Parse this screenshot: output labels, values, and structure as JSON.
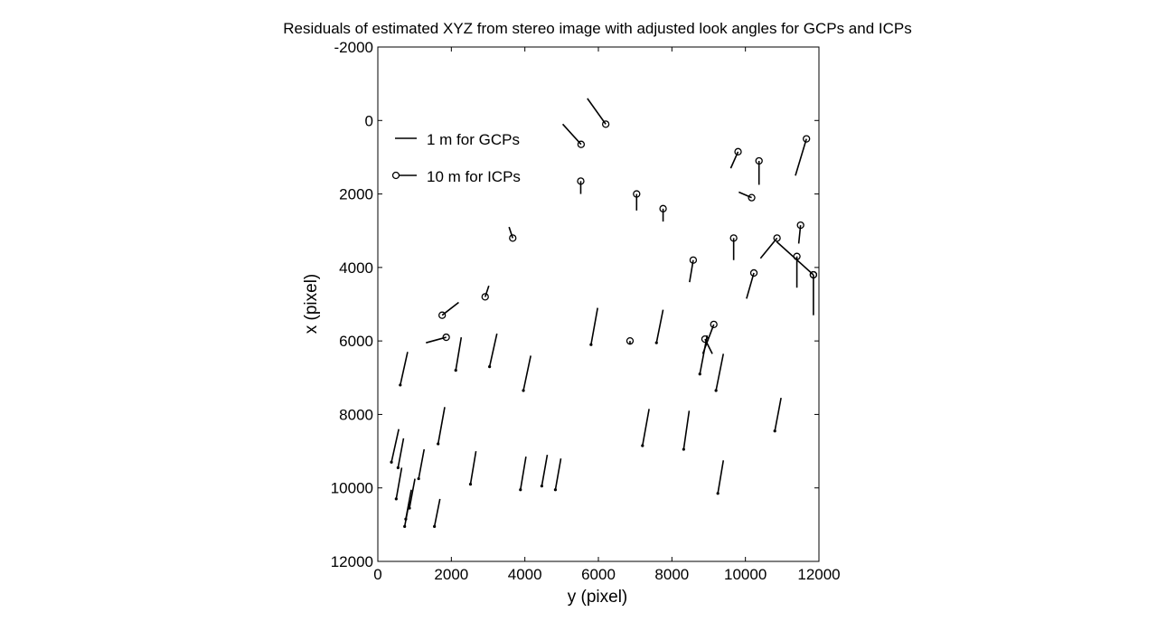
{
  "chart_data": {
    "type": "scatter",
    "title": "Residuals of estimated XYZ from stereo image with adjusted look angles for GCPs and ICPs",
    "xlabel": "y (pixel)",
    "ylabel": "x (pixel)",
    "xlim": [
      0,
      12000
    ],
    "ylim": [
      -2000,
      12000
    ],
    "y_reversed": true,
    "grid": false,
    "x_ticks": [
      "0",
      "2000",
      "4000",
      "6000",
      "8000",
      "10000",
      "12000"
    ],
    "y_ticks": [
      "-2000",
      "0",
      "2000",
      "4000",
      "6000",
      "8000",
      "10000",
      "12000"
    ],
    "x_tick_values": [
      0,
      2000,
      4000,
      6000,
      8000,
      10000,
      12000
    ],
    "y_tick_values": [
      -2000,
      0,
      2000,
      4000,
      6000,
      8000,
      10000,
      12000
    ],
    "legend": {
      "placement": "top-left",
      "entries": [
        {
          "label": "1 m for GCPs",
          "marker": "none"
        },
        {
          "label": "10 m for ICPs",
          "marker": "circle"
        }
      ]
    },
    "series": [
      {
        "name": "1 m for GCPs",
        "marker": "dot",
        "points": [
          {
            "y": 610,
            "x": 7200,
            "dy": 200,
            "dx": -900
          },
          {
            "y": 2120,
            "x": 6800,
            "dy": 150,
            "dx": -900
          },
          {
            "y": 3040,
            "x": 6700,
            "dy": 200,
            "dx": -900
          },
          {
            "y": 3960,
            "x": 7350,
            "dy": 200,
            "dx": -950
          },
          {
            "y": 5800,
            "x": 6100,
            "dy": 180,
            "dx": -1000
          },
          {
            "y": 7580,
            "x": 6050,
            "dy": 180,
            "dx": -900
          },
          {
            "y": 8760,
            "x": 6900,
            "dy": 200,
            "dx": -1050
          },
          {
            "y": 9200,
            "x": 7350,
            "dy": 200,
            "dx": -1000
          },
          {
            "y": 10800,
            "x": 8450,
            "dy": 170,
            "dx": -900
          },
          {
            "y": 1640,
            "x": 8800,
            "dy": 180,
            "dx": -1000
          },
          {
            "y": 7200,
            "x": 8850,
            "dy": 180,
            "dx": -1000
          },
          {
            "y": 8320,
            "x": 8950,
            "dy": 150,
            "dx": -1050
          },
          {
            "y": 370,
            "x": 9300,
            "dy": 200,
            "dx": -900
          },
          {
            "y": 550,
            "x": 9450,
            "dy": 150,
            "dx": -800
          },
          {
            "y": 1110,
            "x": 9750,
            "dy": 150,
            "dx": -800
          },
          {
            "y": 2520,
            "x": 9900,
            "dy": 150,
            "dx": -900
          },
          {
            "y": 3880,
            "x": 10050,
            "dy": 150,
            "dx": -900
          },
          {
            "y": 4460,
            "x": 9950,
            "dy": 150,
            "dx": -850
          },
          {
            "y": 4830,
            "x": 10050,
            "dy": 150,
            "dx": -850
          },
          {
            "y": 9250,
            "x": 10150,
            "dy": 150,
            "dx": -900
          },
          {
            "y": 500,
            "x": 10300,
            "dy": 150,
            "dx": -850
          },
          {
            "y": 860,
            "x": 10550,
            "dy": 150,
            "dx": -800
          },
          {
            "y": 760,
            "x": 10850,
            "dy": 150,
            "dx": -800
          },
          {
            "y": 730,
            "x": 11050,
            "dy": 130,
            "dx": -700
          },
          {
            "y": 1540,
            "x": 11050,
            "dy": 150,
            "dx": -750
          }
        ]
      },
      {
        "name": "10 m for ICPs",
        "marker": "circle",
        "points": [
          {
            "y": 6200,
            "x": 100,
            "dy": -500,
            "dx": -700
          },
          {
            "y": 5530,
            "x": 650,
            "dy": -500,
            "dx": -550
          },
          {
            "y": 5520,
            "x": 1650,
            "dy": 0,
            "dx": 350
          },
          {
            "y": 7040,
            "x": 2000,
            "dy": 0,
            "dx": 450
          },
          {
            "y": 7760,
            "x": 2400,
            "dy": 0,
            "dx": 350
          },
          {
            "y": 3670,
            "x": 3200,
            "dy": -100,
            "dx": -300
          },
          {
            "y": 2920,
            "x": 4800,
            "dy": 100,
            "dx": -300
          },
          {
            "y": 1750,
            "x": 5300,
            "dy": 450,
            "dx": -350
          },
          {
            "y": 1860,
            "x": 5900,
            "dy": -550,
            "dx": 150
          },
          {
            "y": 6860,
            "x": 6000,
            "dy": 0,
            "dx": 100
          },
          {
            "y": 8580,
            "x": 3800,
            "dy": -100,
            "dx": 600
          },
          {
            "y": 9800,
            "x": 850,
            "dy": -200,
            "dx": 450
          },
          {
            "y": 10370,
            "x": 1100,
            "dy": 0,
            "dx": 650
          },
          {
            "y": 11660,
            "x": 500,
            "dy": -300,
            "dx": 1000
          },
          {
            "y": 10170,
            "x": 2100,
            "dy": -350,
            "dx": -150
          },
          {
            "y": 11500,
            "x": 2850,
            "dy": -50,
            "dx": 500
          },
          {
            "y": 9680,
            "x": 3200,
            "dy": 0,
            "dx": 600
          },
          {
            "y": 10860,
            "x": 3200,
            "dy": -450,
            "dx": 550
          },
          {
            "y": 10230,
            "x": 4150,
            "dy": -200,
            "dx": 700
          },
          {
            "y": 11400,
            "x": 3700,
            "dy": 0,
            "dx": 850
          },
          {
            "y": 11850,
            "x": 4200,
            "dy": 0,
            "dx": 1100
          },
          {
            "y": 9140,
            "x": 5550,
            "dy": -300,
            "dx": 800
          },
          {
            "y": 8900,
            "x": 5950,
            "dy": 200,
            "dx": 400
          },
          {
            "y": 11850,
            "x": 4200,
            "dy": -1000,
            "dx": -900
          }
        ]
      }
    ]
  }
}
